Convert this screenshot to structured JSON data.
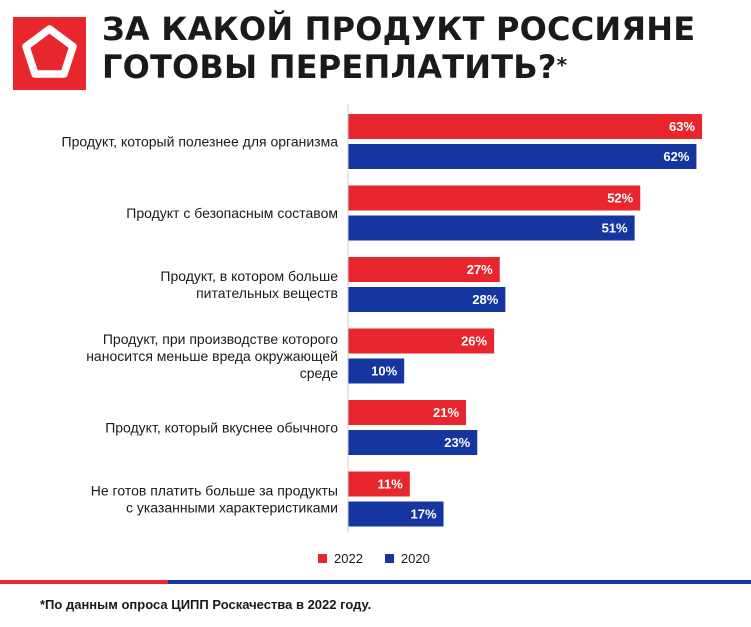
{
  "header": {
    "title_line1": "ЗА КАКОЙ ПРОДУКТ РОССИЯНЕ",
    "title_line2": "ГОТОВЫ ПЕРЕПЛАТИТЬ?",
    "title_mark": "*"
  },
  "colors": {
    "2022": "#e8262d",
    "2020": "#1535a0"
  },
  "chart_data": {
    "type": "bar",
    "orientation": "horizontal",
    "categories": [
      [
        "Продукт, который полезнее для организма"
      ],
      [
        "Продукт с безопасным составом"
      ],
      [
        "Продукт, в котором больше",
        "питательных веществ"
      ],
      [
        "Продукт, при производстве которого",
        "наносится меньше вреда окружающей",
        "среде"
      ],
      [
        "Продукт, который вкуснее обычного"
      ],
      [
        "Не готов платить больше за продукты",
        "с указанными характеристиками"
      ]
    ],
    "series": [
      {
        "name": "2022",
        "color": "#e8262d",
        "values": [
          63,
          52,
          27,
          26,
          21,
          11
        ]
      },
      {
        "name": "2020",
        "color": "#1535a0",
        "values": [
          62,
          51,
          28,
          10,
          23,
          17
        ]
      }
    ],
    "value_suffix": "%",
    "xlim": [
      0,
      65
    ],
    "grid": false,
    "legend_position": "bottom"
  },
  "footnote": "*По данным опроса ЦИПП Роскачества в 2022 году."
}
